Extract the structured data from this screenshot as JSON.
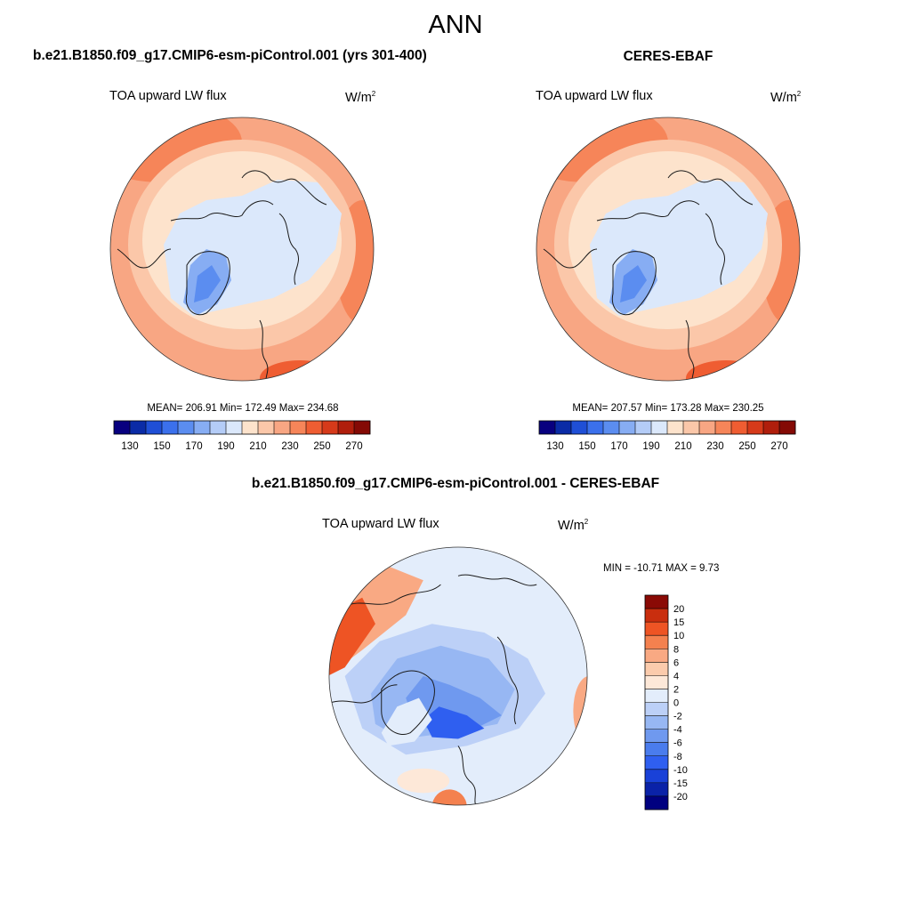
{
  "figure": {
    "title": "ANN"
  },
  "colors": {
    "abs_scale": [
      "#08007f",
      "#0a2ba6",
      "#1f4fd6",
      "#3b70ec",
      "#5b8df0",
      "#87adf3",
      "#b4ccf7",
      "#dbe8fb",
      "#fde3cc",
      "#fbc7a9",
      "#f8a683",
      "#f68559",
      "#ef5d32",
      "#d63a1a",
      "#b01e0c",
      "#840a05"
    ],
    "diff_scale": [
      "#000080",
      "#0a22a8",
      "#1941d8",
      "#2f5ff0",
      "#4a7ced",
      "#6f99ef",
      "#97b7f3",
      "#bcd0f7",
      "#e3edfb",
      "#fde8d8",
      "#fbcbac",
      "#f9a983",
      "#f4814f",
      "#ee5424",
      "#c92e0e",
      "#8a0a05"
    ],
    "coastline": "#1a1a1a",
    "disk_edge": "#333333"
  },
  "chart_data": [
    {
      "type": "polar-map",
      "title": "b.e21.B1850.f09_g17.CMIP6-esm-piControl.001 (yrs 301-400)",
      "left_label": "TOA upward LW flux",
      "units_base": "W/m",
      "units_exp": "2",
      "stats": "MEAN= 206.91  Min= 172.49  Max= 234.68",
      "mean": 206.91,
      "min": 172.49,
      "max": 234.68,
      "colorbar": {
        "orientation": "horizontal",
        "levels": [
          130,
          140,
          150,
          160,
          170,
          180,
          190,
          200,
          210,
          220,
          230,
          240,
          250,
          260,
          270
        ],
        "tick_labels": [
          "130",
          "150",
          "170",
          "190",
          "210",
          "230",
          "250",
          "270"
        ]
      }
    },
    {
      "type": "polar-map",
      "title": "CERES-EBAF",
      "left_label": "TOA upward LW flux",
      "units_base": "W/m",
      "units_exp": "2",
      "stats": "MEAN= 207.57  Min= 173.28  Max= 230.25",
      "mean": 207.57,
      "min": 173.28,
      "max": 230.25,
      "colorbar": {
        "orientation": "horizontal",
        "levels": [
          130,
          140,
          150,
          160,
          170,
          180,
          190,
          200,
          210,
          220,
          230,
          240,
          250,
          260,
          270
        ],
        "tick_labels": [
          "130",
          "150",
          "170",
          "190",
          "210",
          "230",
          "250",
          "270"
        ]
      }
    },
    {
      "type": "polar-map",
      "title": "b.e21.B1850.f09_g17.CMIP6-esm-piControl.001 - CERES-EBAF",
      "left_label": "TOA upward LW flux",
      "units_base": "W/m",
      "units_exp": "2",
      "stats": "MIN = -10.71 MAX =   9.73",
      "min": -10.71,
      "max": 9.73,
      "colorbar": {
        "orientation": "vertical",
        "levels": [
          -20,
          -15,
          -10,
          -8,
          -6,
          -4,
          -2,
          0,
          2,
          4,
          6,
          8,
          10,
          15,
          20
        ],
        "tick_labels": [
          "20",
          "15",
          "10",
          "8",
          "6",
          "4",
          "2",
          "0",
          "-2",
          "-4",
          "-6",
          "-8",
          "-10",
          "-15",
          "-20"
        ]
      }
    }
  ]
}
